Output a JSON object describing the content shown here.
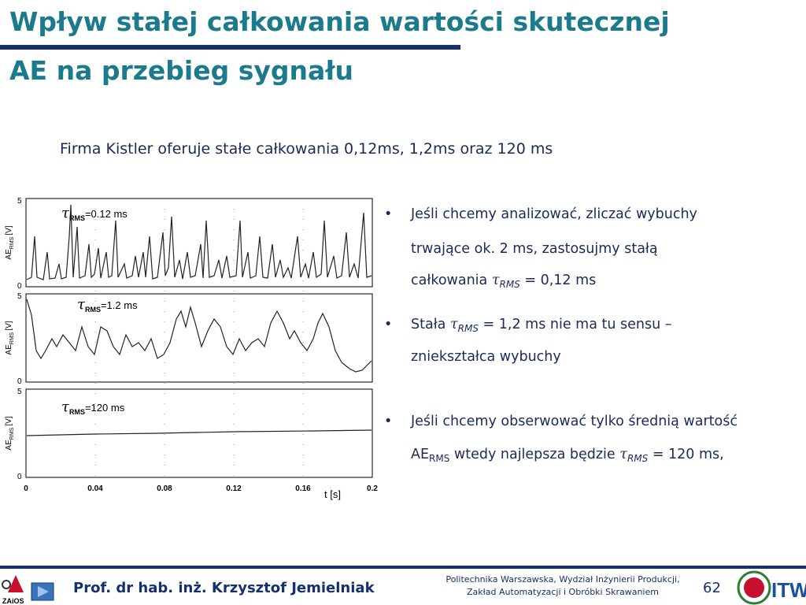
{
  "header": {
    "title_lines": [
      "Wpływ stałej całkowania wartości skutecznej",
      "AE na przebieg sygnału"
    ]
  },
  "intro": "Firma Kistler oferuje stałe całkowania 0,12ms, 1,2ms oraz 120 ms",
  "figure": {
    "panels": [
      {
        "tau": "τ",
        "sub": "RMS",
        "label": "=0.12 ms",
        "ytop": "5",
        "ybottom": "0"
      },
      {
        "tau": "τ",
        "sub": "RMS",
        "label": "=1.2 ms",
        "ytop": "5",
        "ybottom": "0"
      },
      {
        "tau": "τ",
        "sub": "RMS",
        "label": "=120 ms",
        "ytop": "5",
        "ybottom": "0"
      }
    ],
    "y_label": {
      "main": "AE",
      "sub": "RMS",
      "unit": "[V]"
    },
    "xticks": [
      "0",
      "0.04",
      "0.08",
      "0.12",
      "0.16",
      "0.2"
    ],
    "x_label": "t [s]"
  },
  "bullets": [
    {
      "marker": "•",
      "lines": [
        [
          {
            "text": "Jeśli chcemy analizować, zliczać wybuchy"
          }
        ],
        [
          {
            "text": "trwające ok. 2 ms, zastosujmy stałą"
          }
        ],
        [
          {
            "text": "całkowania "
          },
          {
            "tau": "τ",
            "sub": "RMS"
          },
          {
            "text": " = 0,12 ms"
          }
        ]
      ]
    },
    {
      "marker": "•",
      "lines": [
        [
          {
            "text": "Stała "
          },
          {
            "tau": "τ",
            "sub": "RMS"
          },
          {
            "text": " = 1,2 ms nie ma tu sensu –"
          }
        ],
        [
          {
            "text": "zniekształca wybuchy"
          }
        ]
      ]
    },
    {
      "marker": "•",
      "lines": [
        [
          {
            "text": "Jeśli chcemy obserwować tylko średnią wartość"
          }
        ],
        [
          {
            "text": "AE"
          },
          {
            "sub": "RMS"
          },
          {
            "text": " wtedy najlepsza będzie "
          },
          {
            "tau": "τ",
            "sub": "RMS"
          },
          {
            "text": " = 120 ms,"
          }
        ]
      ]
    }
  ],
  "footer": {
    "author": "Prof. dr hab. inż. Krzysztof Jemielniak",
    "institution_lines": [
      "Politechnika Warszawska, Wydział Inżynierii Produkcji,",
      "Zakład Automatyzacji i Obróbki Skrawaniem"
    ],
    "page": "62",
    "logo_left": "ZAiOS",
    "logo_right": "ITW"
  }
}
